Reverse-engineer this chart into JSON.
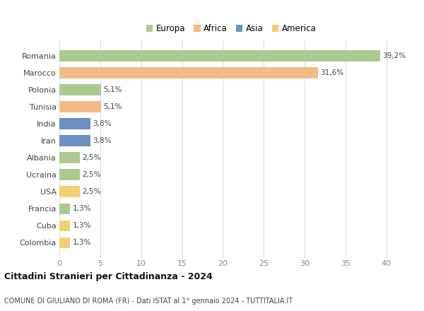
{
  "countries": [
    "Romania",
    "Marocco",
    "Polonia",
    "Tunisia",
    "India",
    "Iran",
    "Albania",
    "Ucraina",
    "USA",
    "Francia",
    "Cuba",
    "Colombia"
  ],
  "values": [
    39.2,
    31.6,
    5.1,
    5.1,
    3.8,
    3.8,
    2.5,
    2.5,
    2.5,
    1.3,
    1.3,
    1.3
  ],
  "labels": [
    "39,2%",
    "31,6%",
    "5,1%",
    "5,1%",
    "3,8%",
    "3,8%",
    "2,5%",
    "2,5%",
    "2,5%",
    "1,3%",
    "1,3%",
    "1,3%"
  ],
  "colors": [
    "#adc990",
    "#f2bb88",
    "#adc990",
    "#f2bb88",
    "#6b8fbf",
    "#6b8fbf",
    "#adc990",
    "#adc990",
    "#f0d070",
    "#adc990",
    "#f0d070",
    "#f0d070"
  ],
  "legend": [
    {
      "label": "Europa",
      "color": "#adc990"
    },
    {
      "label": "Africa",
      "color": "#f2bb88"
    },
    {
      "label": "Asia",
      "color": "#6b8fbf"
    },
    {
      "label": "America",
      "color": "#f0d070"
    }
  ],
  "xlim": [
    0,
    42
  ],
  "xticks": [
    0,
    5,
    10,
    15,
    20,
    25,
    30,
    35,
    40
  ],
  "title": "Cittadini Stranieri per Cittadinanza - 2024",
  "subtitle": "COMUNE DI GIULIANO DI ROMA (FR) - Dati ISTAT al 1° gennaio 2024 - TUTTITALIA.IT",
  "background_color": "#ffffff",
  "grid_color": "#dddddd",
  "bar_height": 0.65
}
